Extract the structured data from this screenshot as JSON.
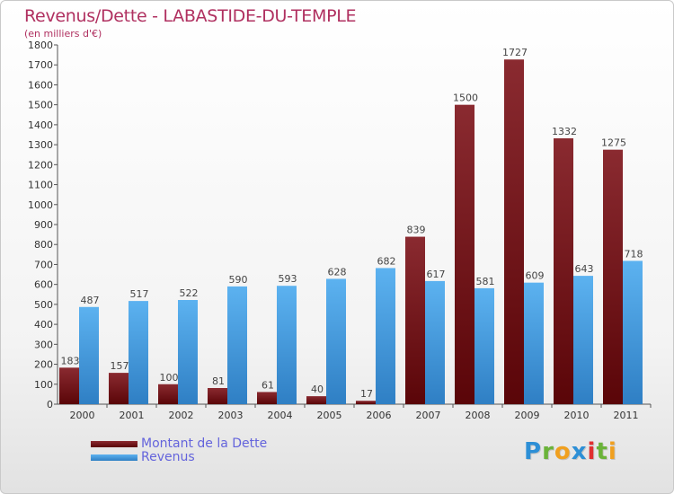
{
  "title": "Revenus/Dette - LABASTIDE-DU-TEMPLE",
  "subtitle": "(en milliers d'€)",
  "colors": {
    "dette": "#7a1a1f",
    "revenus": "#4a9fe0",
    "title": "#b03060",
    "legend_text": "#6464dc"
  },
  "logo": {
    "letters": [
      "P",
      "r",
      "o",
      "x",
      "i",
      "t",
      "i"
    ],
    "colors": [
      "#2d8fd6",
      "#6bb33a",
      "#f0a020",
      "#2d8fd6",
      "#e03030",
      "#6bb33a",
      "#f0a020"
    ]
  },
  "chart_data": {
    "type": "bar",
    "title": "Revenus/Dette - LABASTIDE-DU-TEMPLE",
    "subtitle": "(en milliers d'€)",
    "xlabel": "",
    "ylabel": "",
    "categories": [
      "2000",
      "2001",
      "2002",
      "2003",
      "2004",
      "2005",
      "2006",
      "2007",
      "2008",
      "2009",
      "2010",
      "2011"
    ],
    "series": [
      {
        "name": "Montant de la Dette",
        "values": [
          183,
          157,
          100,
          81,
          61,
          40,
          17,
          839,
          1500,
          1727,
          1332,
          1275
        ]
      },
      {
        "name": "Revenus",
        "values": [
          487,
          517,
          522,
          590,
          593,
          628,
          682,
          617,
          581,
          609,
          643,
          718
        ]
      }
    ],
    "ylim": [
      0,
      1800
    ],
    "yticks": [
      0,
      100,
      200,
      300,
      400,
      500,
      600,
      700,
      800,
      900,
      1000,
      1100,
      1200,
      1300,
      1400,
      1500,
      1600,
      1700,
      1800
    ],
    "grid": false,
    "legend": "bottom-left"
  }
}
